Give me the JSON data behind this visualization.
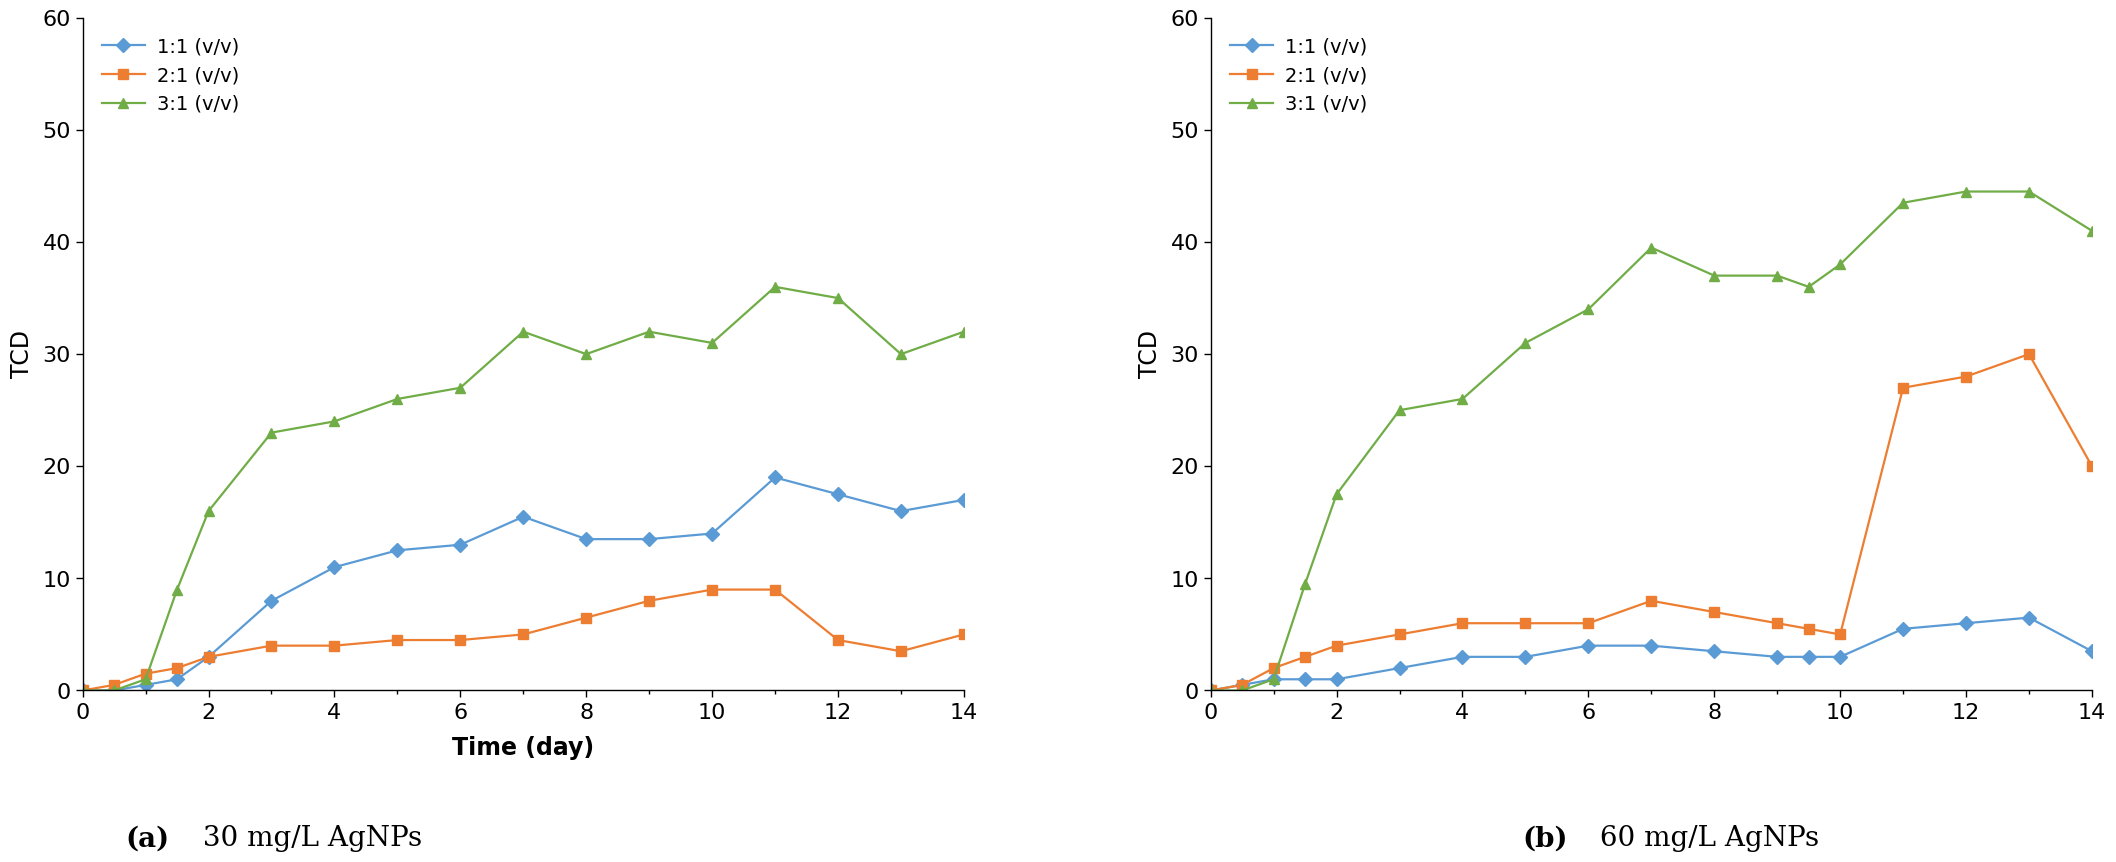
{
  "panel_a": {
    "xlabel": "Time (day)",
    "ylabel": "TCD",
    "ylim": [
      0,
      60
    ],
    "xlim": [
      0,
      14
    ],
    "yticks": [
      0,
      10,
      20,
      30,
      40,
      50,
      60
    ],
    "xticks": [
      0,
      2,
      4,
      6,
      8,
      10,
      12,
      14
    ],
    "series": {
      "1:1 (v/v)": {
        "color": "#5B9BD5",
        "marker": "D",
        "x": [
          0,
          0.5,
          1,
          1.5,
          2,
          3,
          4,
          5,
          6,
          7,
          8,
          9,
          10,
          11,
          12,
          13,
          14
        ],
        "y": [
          0,
          0,
          0.5,
          1,
          3,
          8,
          11,
          12.5,
          13,
          15.5,
          13.5,
          13.5,
          14,
          19,
          17.5,
          16,
          17
        ]
      },
      "2:1 (v/v)": {
        "color": "#ED7D31",
        "marker": "s",
        "x": [
          0,
          0.5,
          1,
          1.5,
          2,
          3,
          4,
          5,
          6,
          7,
          8,
          9,
          10,
          11,
          12,
          13,
          14
        ],
        "y": [
          0,
          0.5,
          1.5,
          2,
          3,
          4,
          4,
          4.5,
          4.5,
          5,
          6.5,
          8,
          9,
          9,
          4.5,
          3.5,
          5
        ]
      },
      "3:1 (v/v)": {
        "color": "#70AD47",
        "marker": "^",
        "x": [
          0,
          0.5,
          1,
          1.5,
          2,
          3,
          4,
          5,
          6,
          7,
          8,
          9,
          10,
          11,
          12,
          13,
          14
        ],
        "y": [
          0,
          0,
          1,
          9,
          16,
          23,
          24,
          26,
          27,
          32,
          30,
          32,
          31,
          36,
          35,
          30,
          32
        ]
      }
    }
  },
  "panel_b": {
    "xlabel": "",
    "ylabel": "TCD",
    "ylim": [
      0,
      60
    ],
    "xlim": [
      0,
      14
    ],
    "yticks": [
      0,
      10,
      20,
      30,
      40,
      50,
      60
    ],
    "xticks": [
      0,
      2,
      4,
      6,
      8,
      10,
      12,
      14
    ],
    "series": {
      "1:1 (v/v)": {
        "color": "#5B9BD5",
        "marker": "D",
        "x": [
          0,
          0.5,
          1,
          1.5,
          2,
          3,
          4,
          5,
          6,
          7,
          8,
          9,
          9.5,
          10,
          11,
          12,
          13,
          14
        ],
        "y": [
          0,
          0.5,
          1,
          1,
          1,
          2,
          3,
          3,
          4,
          4,
          3.5,
          3,
          3,
          3,
          5.5,
          6,
          6.5,
          3.5
        ]
      },
      "2:1 (v/v)": {
        "color": "#ED7D31",
        "marker": "s",
        "x": [
          0,
          0.5,
          1,
          1.5,
          2,
          3,
          4,
          5,
          6,
          7,
          8,
          9,
          9.5,
          10,
          11,
          12,
          13,
          14
        ],
        "y": [
          0,
          0.5,
          2,
          3,
          4,
          5,
          6,
          6,
          6,
          8,
          7,
          6,
          5.5,
          5,
          27,
          28,
          30,
          20
        ]
      },
      "3:1 (v/v)": {
        "color": "#70AD47",
        "marker": "^",
        "x": [
          0,
          0.5,
          1,
          1.5,
          2,
          3,
          4,
          5,
          6,
          7,
          8,
          9,
          9.5,
          10,
          11,
          12,
          13,
          14
        ],
        "y": [
          0,
          0,
          1,
          9.5,
          17.5,
          25,
          26,
          31,
          34,
          39.5,
          37,
          37,
          36,
          38,
          43.5,
          44.5,
          44.5,
          41
        ]
      }
    }
  },
  "legend_labels": [
    "1:1 (v/v)",
    "2:1 (v/v)",
    "3:1 (v/v)"
  ],
  "colors": [
    "#5B9BD5",
    "#ED7D31",
    "#70AD47"
  ],
  "markers": [
    "D",
    "s",
    "^"
  ],
  "markersize": 7,
  "linewidth": 1.6,
  "caption_a_bold": "(a)",
  "caption_a_normal": " 30 mg/L AgNPs",
  "caption_b_bold": "(b)",
  "caption_b_normal": " 60 mg/L AgNPs",
  "caption_fontsize": 20,
  "tick_fontsize": 16,
  "label_fontsize": 17,
  "legend_fontsize": 14
}
